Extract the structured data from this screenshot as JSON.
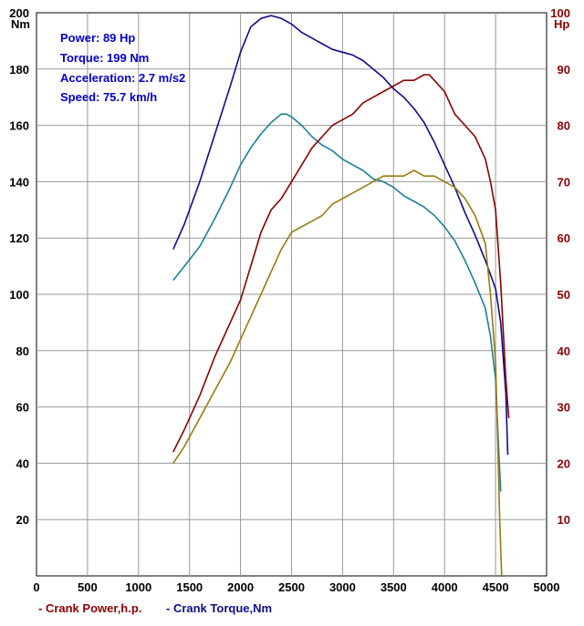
{
  "info": {
    "power": "Power: 89 Hp",
    "torque": "Torque: 199 Nm",
    "acceleration": "Acceleration: 2.7 m/s2",
    "speed": "Speed: 75.7 km/h"
  },
  "legend": {
    "power": "- Crank Power,h.p.",
    "torque": "- Crank Torque,Nm"
  },
  "colors": {
    "power": "#8b0000",
    "torque": "#0d0d8c",
    "series_teal": "#1a7f9a",
    "series_olive": "#9a7a10",
    "grid": "#999999",
    "right_axis": "#8b0000"
  },
  "chart_data": {
    "type": "line",
    "grid": true,
    "xlim": [
      0,
      5000
    ],
    "ylim_left": [
      0,
      200
    ],
    "ylim_right": [
      0,
      100
    ],
    "x_ticks": [
      "0",
      "500",
      "1000",
      "1500",
      "2000",
      "2500",
      "3000",
      "3500",
      "4000",
      "4500",
      "5000"
    ],
    "y_left_ticks": [
      "20",
      "40",
      "60",
      "80",
      "100",
      "120",
      "140",
      "160",
      "180",
      "200"
    ],
    "y_right_ticks": [
      "10",
      "20",
      "30",
      "40",
      "50",
      "60",
      "70",
      "80",
      "90",
      "100"
    ],
    "y_left_unit": "Nm",
    "y_right_unit": "Hp",
    "series": [
      {
        "name": "Crank Torque,Nm",
        "axis": "left",
        "x": [
          1340,
          1450,
          1600,
          1750,
          1900,
          2000,
          2100,
          2200,
          2300,
          2400,
          2500,
          2600,
          2700,
          2800,
          2900,
          3000,
          3100,
          3200,
          3300,
          3400,
          3500,
          3600,
          3700,
          3800,
          3900,
          4000,
          4100,
          4200,
          4300,
          4400,
          4500,
          4550,
          4600,
          4620
        ],
        "values": [
          116,
          125,
          140,
          157,
          174,
          186,
          195,
          198,
          199,
          198,
          196,
          193,
          191,
          189,
          187,
          186,
          185,
          183,
          180,
          177,
          173,
          170,
          166,
          161,
          154,
          146,
          138,
          129,
          121,
          112,
          102,
          90,
          65,
          43
        ]
      },
      {
        "name": "",
        "axis": "left",
        "x": [
          1340,
          1450,
          1600,
          1750,
          1900,
          2000,
          2100,
          2200,
          2300,
          2400,
          2450,
          2500,
          2600,
          2700,
          2800,
          2900,
          3000,
          3100,
          3200,
          3300,
          3400,
          3500,
          3600,
          3700,
          3800,
          3900,
          4000,
          4100,
          4200,
          4300,
          4400,
          4450,
          4500,
          4530,
          4550
        ],
        "values": [
          105,
          110,
          117,
          127,
          138,
          146,
          152,
          157,
          161,
          164,
          164,
          163,
          160,
          156,
          153,
          151,
          148,
          146,
          144,
          141,
          140,
          138,
          135,
          133,
          131,
          128,
          124,
          119,
          112,
          104,
          95,
          85,
          70,
          45,
          30
        ]
      },
      {
        "name": "Crank Power,h.p.",
        "axis": "right",
        "x": [
          1340,
          1450,
          1600,
          1750,
          1900,
          2000,
          2100,
          2200,
          2300,
          2400,
          2500,
          2600,
          2700,
          2800,
          2900,
          3000,
          3100,
          3200,
          3300,
          3400,
          3500,
          3600,
          3700,
          3800,
          3850,
          3900,
          4000,
          4100,
          4200,
          4300,
          4400,
          4450,
          4500,
          4550,
          4600,
          4630
        ],
        "values": [
          22,
          26,
          32,
          39,
          45,
          49,
          55,
          61,
          65,
          67,
          70,
          73,
          76,
          78,
          80,
          81,
          82,
          84,
          85,
          86,
          87,
          88,
          88,
          89,
          89,
          88,
          86,
          82,
          80,
          78,
          74,
          70,
          65,
          52,
          35,
          28
        ]
      },
      {
        "name": "",
        "axis": "right",
        "x": [
          1340,
          1450,
          1600,
          1750,
          1900,
          2000,
          2100,
          2200,
          2300,
          2400,
          2500,
          2600,
          2700,
          2800,
          2900,
          3000,
          3100,
          3200,
          3300,
          3400,
          3500,
          3600,
          3700,
          3800,
          3900,
          4000,
          4100,
          4200,
          4300,
          4400,
          4450,
          4500,
          4520,
          4540,
          4560
        ],
        "values": [
          20,
          23,
          28,
          33,
          38,
          42,
          46,
          50,
          54,
          58,
          61,
          62,
          63,
          64,
          66,
          67,
          68,
          69,
          70,
          71,
          71,
          71,
          72,
          71,
          71,
          70,
          69,
          67,
          64,
          59,
          50,
          38,
          25,
          10,
          0
        ]
      }
    ]
  }
}
